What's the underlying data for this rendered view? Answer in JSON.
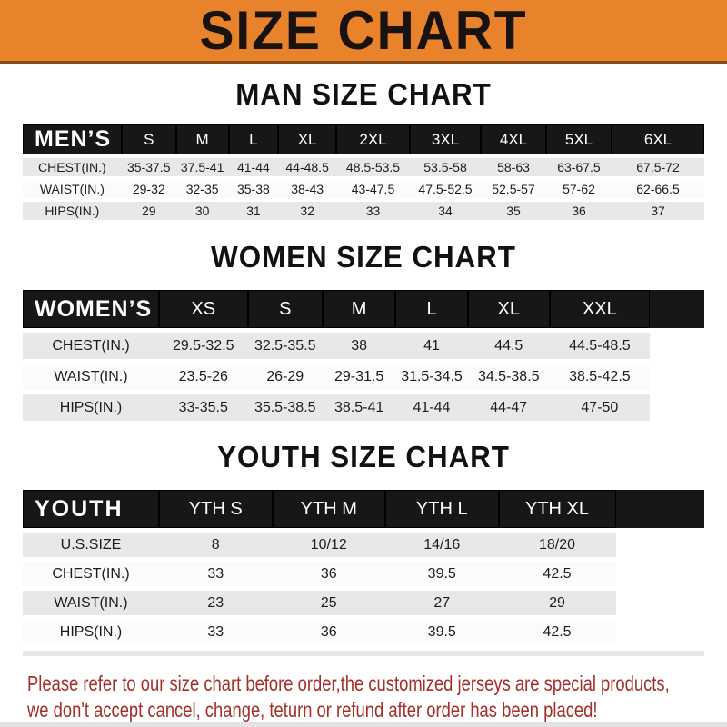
{
  "header": {
    "title": "SIZE CHART",
    "bg_color": "#E8832C",
    "text_color": "#181210"
  },
  "footer": {
    "line1": "Please refer to our size chart before order,the customized jerseys are special products,",
    "line2": "we don't accept cancel, change, teturn or refund after order has been placed!",
    "text_color": "#A3302A"
  },
  "colors": {
    "table_header_bg": "#171717",
    "row_gray": "#E8E8E8",
    "row_white": "#FBFBFB"
  },
  "chart_data": [
    {
      "type": "table",
      "id": "men",
      "title": "MAN SIZE CHART",
      "corner_label": "MEN’S",
      "columns": [
        "S",
        "M",
        "L",
        "XL",
        "2XL",
        "3XL",
        "4XL",
        "5XL",
        "6XL"
      ],
      "rows": [
        {
          "label": "CHEST(IN.)",
          "values": [
            "35-37.5",
            "37.5-41",
            "41-44",
            "44-48.5",
            "48.5-53.5",
            "53.5-58",
            "58-63",
            "63-67.5",
            "67.5-72"
          ]
        },
        {
          "label": "WAIST(IN.)",
          "values": [
            "29-32",
            "32-35",
            "35-38",
            "38-43",
            "43-47.5",
            "47.5-52.5",
            "52.5-57",
            "57-62",
            "62-66.5"
          ]
        },
        {
          "label": "HIPS(IN.)",
          "values": [
            "29",
            "30",
            "31",
            "32",
            "33",
            "34",
            "35",
            "36",
            "37"
          ]
        }
      ]
    },
    {
      "type": "table",
      "id": "women",
      "title": "WOMEN SIZE CHART",
      "corner_label": "WOMEN’S",
      "columns": [
        "XS",
        "S",
        "M",
        "L",
        "XL",
        "XXL"
      ],
      "rows": [
        {
          "label": "CHEST(IN.)",
          "values": [
            "29.5-32.5",
            "32.5-35.5",
            "38",
            "41",
            "44.5",
            "44.5-48.5"
          ]
        },
        {
          "label": "WAIST(IN.)",
          "values": [
            "23.5-26",
            "26-29",
            "29-31.5",
            "31.5-34.5",
            "34.5-38.5",
            "38.5-42.5"
          ]
        },
        {
          "label": "HIPS(IN.)",
          "values": [
            "33-35.5",
            "35.5-38.5",
            "38.5-41",
            "41-44",
            "44-47",
            "47-50"
          ]
        }
      ]
    },
    {
      "type": "table",
      "id": "youth",
      "title": "YOUTH SIZE CHART",
      "corner_label": "YOUTH",
      "columns": [
        "YTH S",
        "YTH M",
        "YTH L",
        "YTH XL"
      ],
      "rows": [
        {
          "label": "U.S.SIZE",
          "values": [
            "8",
            "10/12",
            "14/16",
            "18/20"
          ]
        },
        {
          "label": "CHEST(IN.)",
          "values": [
            "33",
            "36",
            "39.5",
            "42.5"
          ]
        },
        {
          "label": "WAIST(IN.)",
          "values": [
            "23",
            "25",
            "27",
            "29"
          ]
        },
        {
          "label": "HIPS(IN.)",
          "values": [
            "33",
            "36",
            "39.5",
            "42.5"
          ]
        }
      ]
    }
  ]
}
